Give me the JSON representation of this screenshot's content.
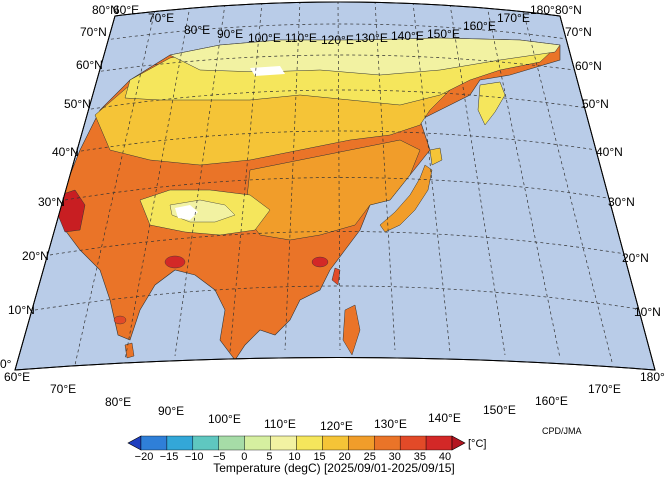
{
  "map": {
    "credit": "CPD/JMA",
    "colorbar_title": "Temperature (degC) [2025/09/01-2025/09/15]",
    "colorbar_unit": "[°C]",
    "colorbar_ticks": [
      "−20",
      "−15",
      "−10",
      "−5",
      "0",
      "5",
      "10",
      "15",
      "20",
      "25",
      "30",
      "35",
      "40"
    ],
    "colorbar_colors": [
      "#1f3fbf",
      "#2f7fd8",
      "#33a7d8",
      "#5fc7c0",
      "#a6dca7",
      "#d6efa0",
      "#f2f2a2",
      "#f5e65c",
      "#f5c437",
      "#f19d2a",
      "#ea7428",
      "#e24a28",
      "#d32827",
      "#b31520"
    ],
    "ocean_color": "#b9cce8",
    "lat_labels_left": [
      "80°N",
      "70°N",
      "60°N",
      "50°N",
      "40°N",
      "30°N",
      "20°N",
      "10°N",
      "0°"
    ],
    "lat_labels_right": [
      "80°N",
      "70°N",
      "60°N",
      "50°N",
      "40°N",
      "30°N",
      "20°N",
      "10°N"
    ],
    "lon_labels_top": [
      "60°E",
      "70°E",
      "80°E",
      "90°E",
      "100°E",
      "110°E",
      "120°E",
      "130°E",
      "140°E",
      "150°E",
      "160°E",
      "170°E",
      "180°"
    ],
    "lon_labels_bottom": [
      "60°E",
      "70°E",
      "80°E",
      "90°E",
      "100°E",
      "110°E",
      "120°E",
      "130°E",
      "140°E",
      "150°E",
      "160°E",
      "170°E",
      "180°"
    ]
  }
}
